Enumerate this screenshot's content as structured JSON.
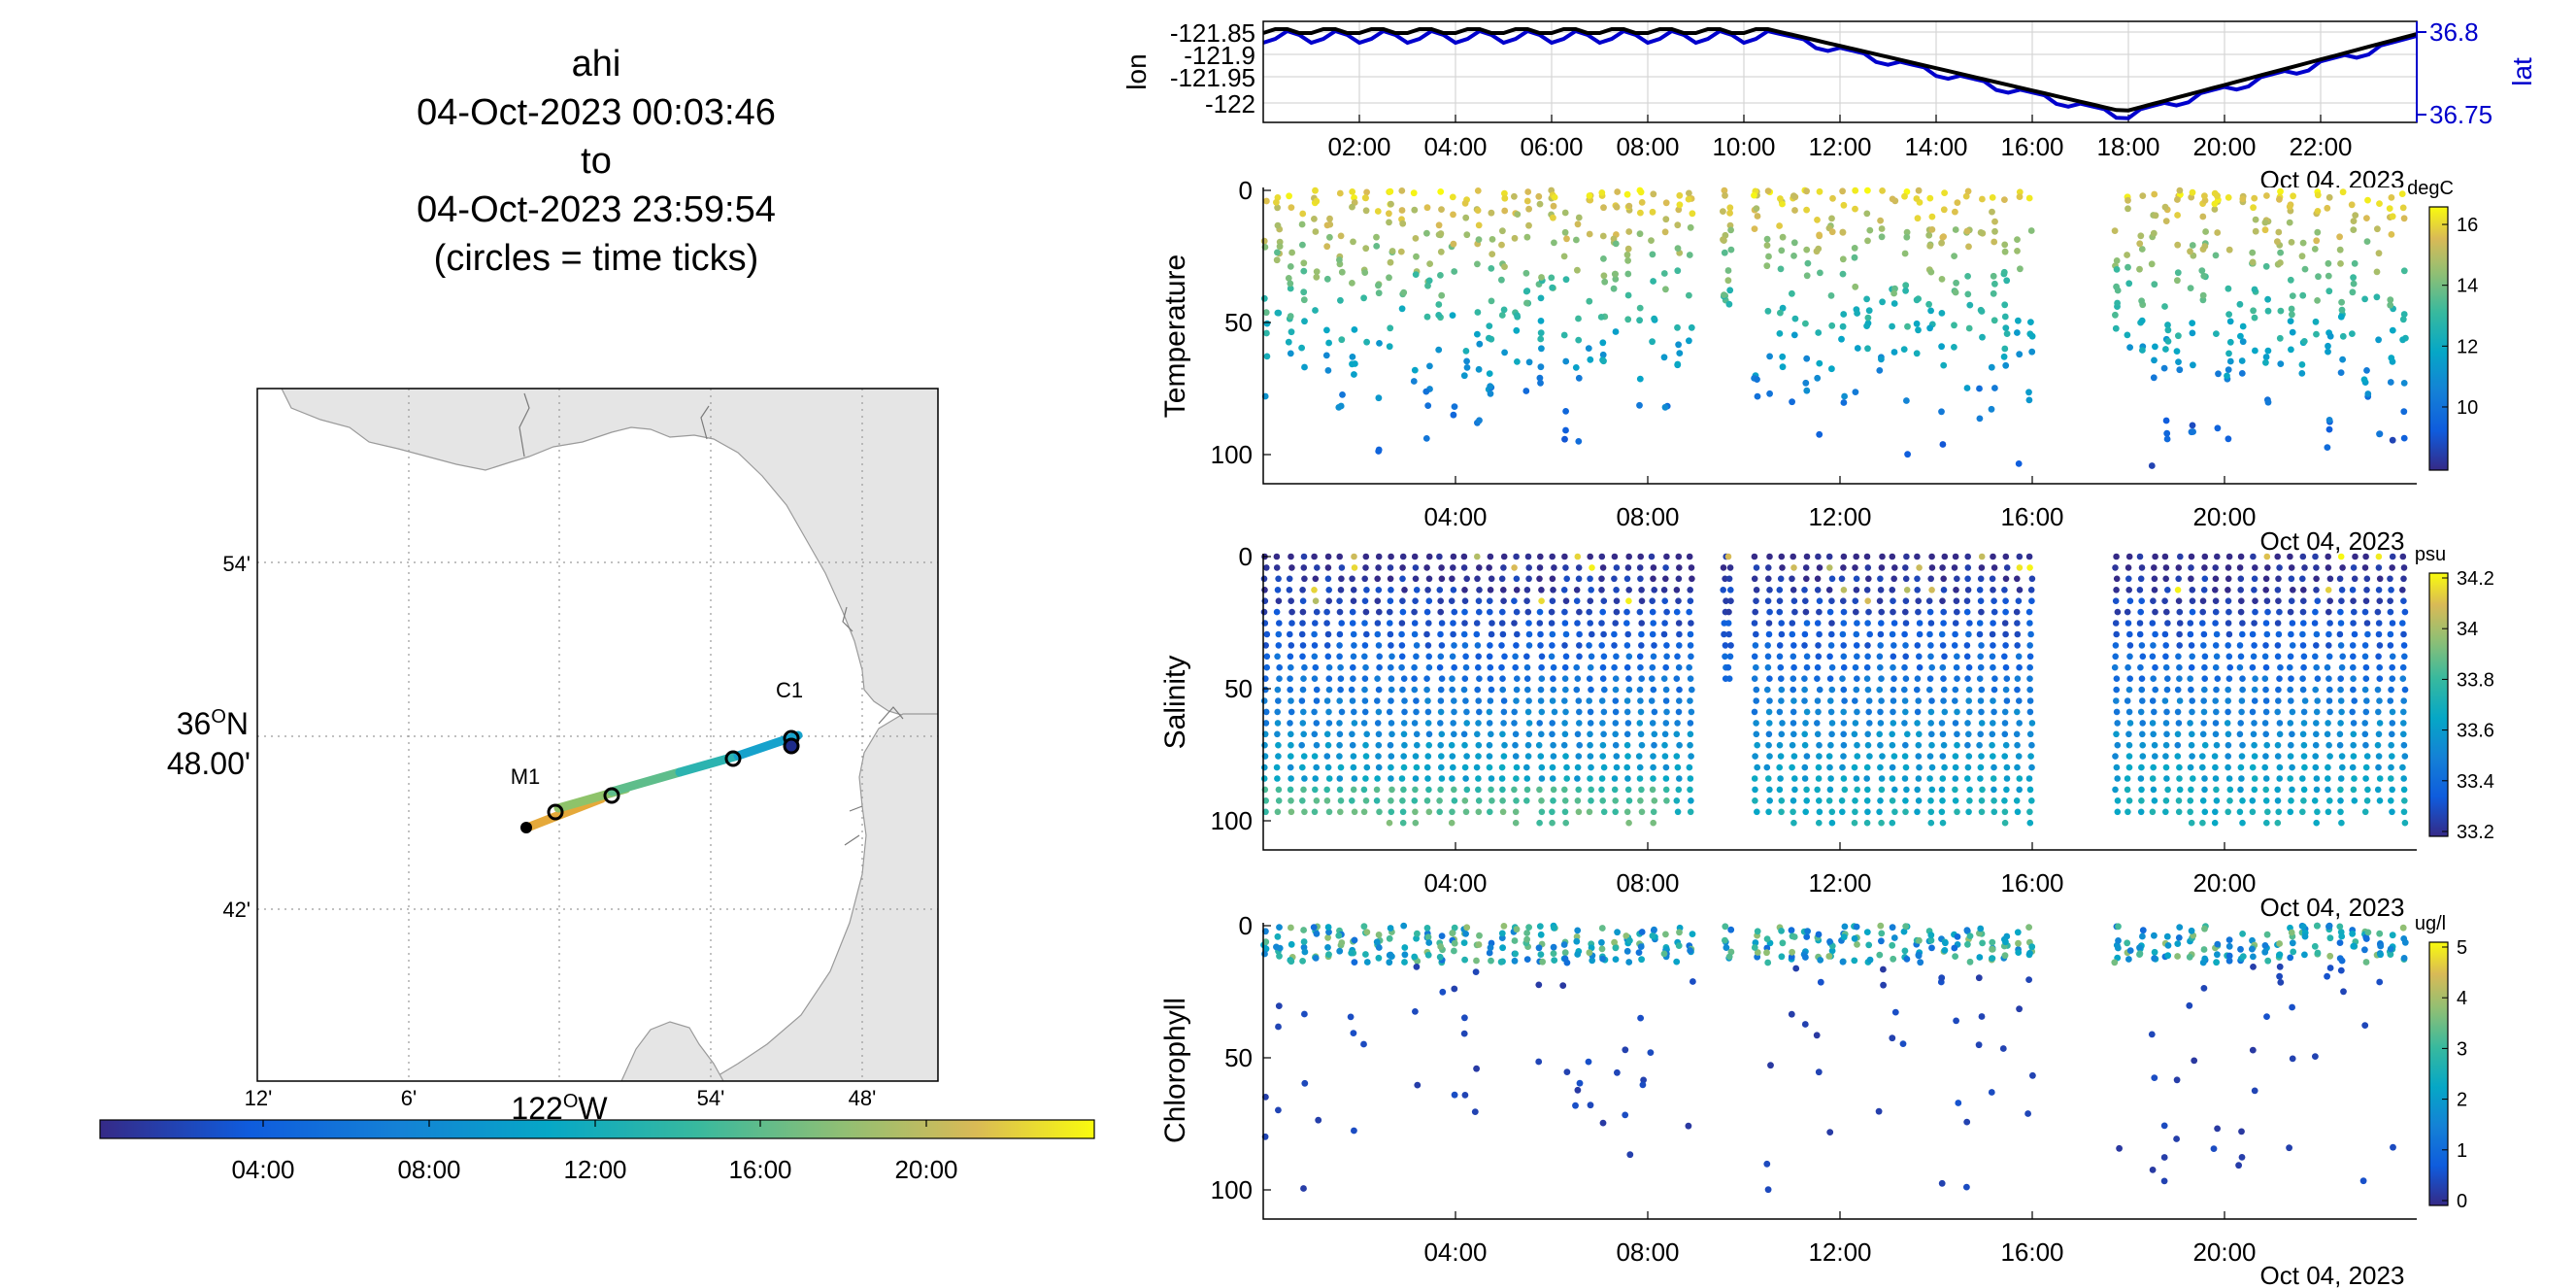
{
  "title_block": {
    "line1": "ahi",
    "line2": "04-Oct-2023 00:03:46",
    "line3": "to",
    "line4": "04-Oct-2023 23:59:54",
    "line5": "(circles = time ticks)"
  },
  "chart_data": [
    {
      "type": "map-track",
      "lat_ticks": [
        "54'",
        "36°N 48.00'",
        "42'"
      ],
      "lon_ticks": [
        "12'",
        "6'",
        "122°W",
        "54'",
        "48'"
      ],
      "lat_label_main": "36",
      "lat_label_sup": "O",
      "lat_label_tail": "N",
      "lat_label_min": "48.00'",
      "lon_label_main": "122",
      "lon_label_sup": "O",
      "lon_label_tail": "W",
      "markers": [
        {
          "label": "C1"
        },
        {
          "label": "M1"
        }
      ],
      "colorbar": {
        "ticks": [
          "04:00",
          "08:00",
          "12:00",
          "16:00",
          "20:00"
        ]
      },
      "grid": true
    },
    {
      "type": "line",
      "ylabel": "lon",
      "y2label": "lat",
      "yticks": [
        "-121.85",
        "-121.9",
        "-121.95",
        "-122"
      ],
      "y2ticks": [
        "36.8",
        "36.75"
      ],
      "xticks": [
        "02:00",
        "04:00",
        "06:00",
        "08:00",
        "10:00",
        "12:00",
        "14:00",
        "16:00",
        "18:00",
        "20:00",
        "22:00"
      ],
      "date_label": "Oct 04, 2023",
      "colors": {
        "lon": "#000000",
        "lat": "#0000cc"
      },
      "grid": true
    },
    {
      "type": "scatter",
      "ylabel": "Temperature",
      "units": "degC",
      "yticks": [
        "0",
        "50",
        "100"
      ],
      "xticks": [
        "04:00",
        "08:00",
        "12:00",
        "16:00",
        "20:00"
      ],
      "date_label": "Oct 04, 2023",
      "cbar_ticks": [
        "16",
        "14",
        "12",
        "10"
      ],
      "clim": [
        8.5,
        16.5
      ]
    },
    {
      "type": "scatter",
      "ylabel": "Salinity",
      "units": "psu",
      "yticks": [
        "0",
        "50",
        "100"
      ],
      "xticks": [
        "04:00",
        "08:00",
        "12:00",
        "16:00",
        "20:00"
      ],
      "date_label": "Oct 04, 2023",
      "cbar_ticks": [
        "34.2",
        "34",
        "33.8",
        "33.6",
        "33.4",
        "33.2"
      ],
      "clim": [
        33.2,
        34.2
      ]
    },
    {
      "type": "scatter",
      "ylabel": "Chlorophyll",
      "units": "ug/l",
      "yticks": [
        "0",
        "50",
        "100"
      ],
      "xticks": [
        "04:00",
        "08:00",
        "12:00",
        "16:00",
        "20:00"
      ],
      "date_label": "Oct 04, 2023",
      "cbar_ticks": [
        "5",
        "4",
        "3",
        "2",
        "1",
        "0"
      ],
      "clim": [
        0,
        5
      ]
    }
  ]
}
